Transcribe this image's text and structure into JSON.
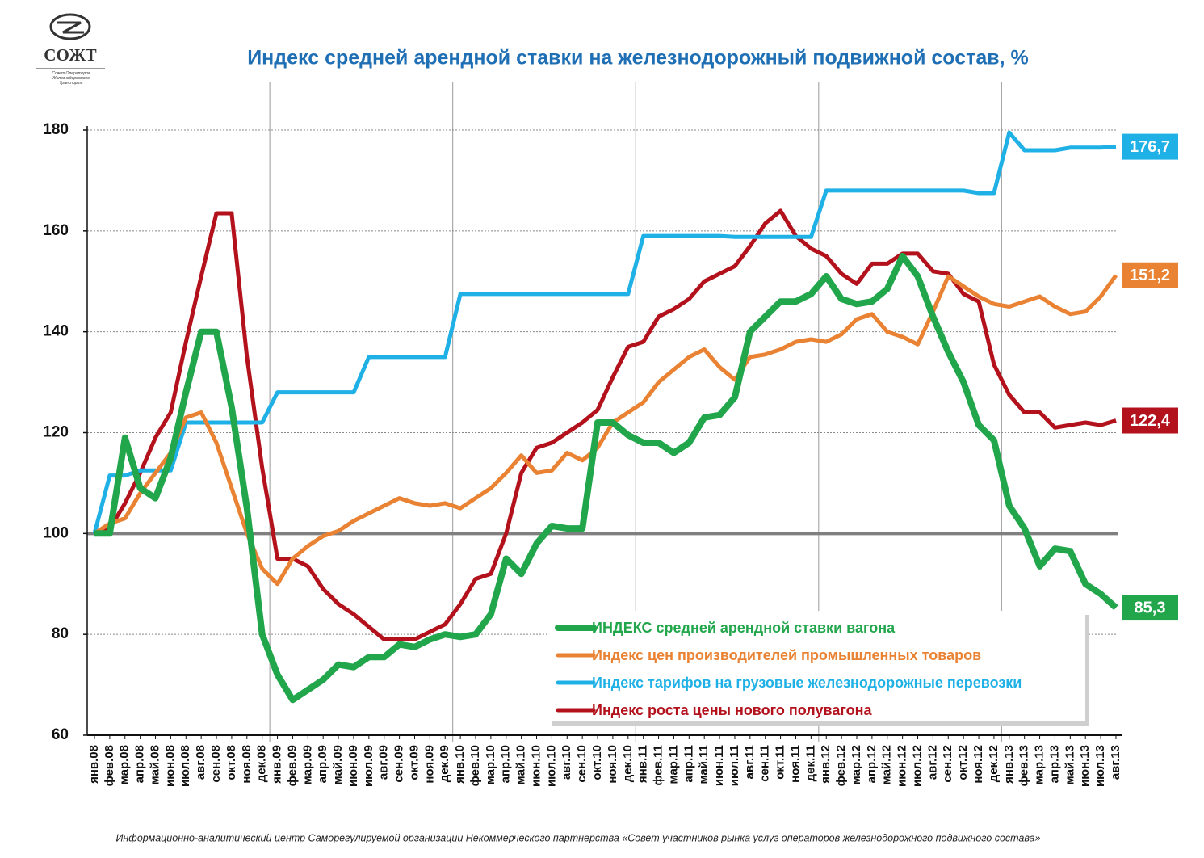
{
  "logo": {
    "name": "СОЖТ",
    "subtitle": "Совет Операторов Железнодорожного Транспорта"
  },
  "footer": "Информационно-аналитический центр Саморегулируемой организации Некоммерческого партнерства «Совет участников рынка услуг операторов железнодорожного подвижного состава»",
  "chart_data": {
    "type": "line",
    "title": "Индекс средней арендной ставки на железнодорожный подвижной состав, %",
    "categories": [
      "янв.08",
      "фев.08",
      "мар.08",
      "апр.08",
      "май.08",
      "июн.08",
      "июл.08",
      "авг.08",
      "сен.08",
      "окт.08",
      "ноя.08",
      "дек.08",
      "янв.09",
      "фев.09",
      "мар.09",
      "апр.09",
      "май.09",
      "июн.09",
      "июл.09",
      "авг.09",
      "сен.09",
      "окт.09",
      "ноя.09",
      "дек.09",
      "янв.10",
      "фев.10",
      "мар.10",
      "апр.10",
      "май.10",
      "июн.10",
      "июл.10",
      "авг.10",
      "сен.10",
      "окт.10",
      "ноя.10",
      "дек.10",
      "янв.11",
      "фев.11",
      "мар.11",
      "апр.11",
      "май.11",
      "июн.11",
      "июл.11",
      "авг.11",
      "сен.11",
      "окт.11",
      "ноя.11",
      "дек.11",
      "янв.12",
      "фев.12",
      "мар.12",
      "апр.12",
      "май.12",
      "июн.12",
      "июл.12",
      "авг.12",
      "сен.12",
      "окт.12",
      "ноя.12",
      "дек.12",
      "янв.13",
      "фев.13",
      "мар.13",
      "апр.13",
      "май.13",
      "июн.13",
      "июл.13",
      "авг.13"
    ],
    "series": [
      {
        "name": "ИНДЕКС средней арендной ставки вагона",
        "color": "#21a64b",
        "values": [
          100,
          100,
          119,
          109,
          107,
          115,
          128,
          140,
          140,
          125,
          105,
          80,
          72,
          67,
          69,
          71,
          74,
          73.5,
          75.5,
          75.5,
          78,
          77.5,
          79,
          80,
          79.5,
          80,
          84,
          95,
          92,
          98,
          101.5,
          101,
          101,
          122,
          122,
          119.5,
          118,
          118,
          116,
          118,
          123,
          123.5,
          127,
          140,
          143,
          146,
          146,
          147.5,
          151,
          146.5,
          145.5,
          146,
          148.5,
          155,
          151,
          143,
          136,
          130,
          121.5,
          118.5,
          105.5,
          101,
          93.5,
          97,
          96.5,
          90,
          88,
          85.3
        ],
        "value_labels": [
          null,
          null,
          null,
          null,
          null,
          null,
          null,
          null,
          null,
          null,
          null,
          null,
          null,
          null,
          null,
          null,
          null,
          null,
          null,
          null,
          null,
          null,
          null,
          null,
          null,
          null,
          null,
          null,
          null,
          null,
          null,
          null,
          null,
          null,
          null,
          null,
          null,
          null,
          null,
          null,
          null,
          null,
          null,
          null,
          null,
          null,
          null,
          null,
          null,
          null,
          null,
          null,
          null,
          null,
          null,
          null,
          null,
          null,
          null,
          null,
          null,
          null,
          null,
          null,
          null,
          null,
          null,
          "85,3"
        ]
      },
      {
        "name": "Индекс цен производителей промышленных товаров",
        "color": "#e98232",
        "values": [
          100,
          102,
          103,
          108,
          112,
          116,
          123,
          124,
          118,
          109,
          100,
          93,
          90,
          95,
          97.5,
          99.5,
          100.5,
          102.5,
          104,
          105.5,
          107,
          106,
          105.5,
          106,
          105,
          107,
          109,
          112,
          115.5,
          112,
          112.5,
          116,
          114.5,
          117,
          122,
          124,
          126,
          130,
          132.5,
          135,
          136.5,
          133,
          130.5,
          135,
          135.5,
          136.5,
          138,
          138.5,
          138,
          139.5,
          142.5,
          143.5,
          140,
          139,
          137.5,
          144,
          151,
          149,
          147,
          145.5,
          145,
          146,
          147,
          145,
          143.5,
          144,
          147,
          151.2
        ],
        "value_labels": [
          null,
          null,
          null,
          null,
          null,
          null,
          null,
          null,
          null,
          null,
          null,
          null,
          null,
          null,
          null,
          null,
          null,
          null,
          null,
          null,
          null,
          null,
          null,
          null,
          null,
          null,
          null,
          null,
          null,
          null,
          null,
          null,
          null,
          null,
          null,
          null,
          null,
          null,
          null,
          null,
          null,
          null,
          null,
          null,
          null,
          null,
          null,
          null,
          null,
          null,
          null,
          null,
          null,
          null,
          null,
          null,
          null,
          null,
          null,
          null,
          null,
          null,
          null,
          null,
          null,
          null,
          null,
          "151,2"
        ]
      },
      {
        "name": "Индекс тарифов на грузовые железнодорожные перевозки",
        "color": "#1fb1e6",
        "values": [
          100,
          111.5,
          111.5,
          112.5,
          112.5,
          112.5,
          122,
          122,
          122,
          122,
          122,
          122,
          128,
          128,
          128,
          128,
          128,
          128,
          135,
          135,
          135,
          135,
          135,
          135,
          147.5,
          147.5,
          147.5,
          147.5,
          147.5,
          147.5,
          147.5,
          147.5,
          147.5,
          147.5,
          147.5,
          147.5,
          159,
          159,
          159,
          159,
          159,
          159,
          158.8,
          158.8,
          158.8,
          158.8,
          158.8,
          158.8,
          168,
          168,
          168,
          168,
          168,
          168,
          168,
          168,
          168,
          168,
          167.5,
          167.5,
          179.5,
          176,
          176,
          176,
          176.5,
          176.5,
          176.5,
          176.7
        ],
        "value_labels": [
          null,
          null,
          null,
          null,
          null,
          null,
          null,
          null,
          null,
          null,
          null,
          null,
          null,
          null,
          null,
          null,
          null,
          null,
          null,
          null,
          null,
          null,
          null,
          null,
          null,
          null,
          null,
          null,
          null,
          null,
          null,
          null,
          null,
          null,
          null,
          null,
          null,
          null,
          null,
          null,
          null,
          null,
          null,
          null,
          null,
          null,
          null,
          null,
          null,
          null,
          null,
          null,
          null,
          null,
          null,
          null,
          null,
          null,
          null,
          null,
          null,
          null,
          null,
          null,
          null,
          null,
          null,
          "176,7"
        ]
      },
      {
        "name": "Индекс роста цены нового полувагона",
        "color": "#b3121c",
        "values": [
          100,
          101,
          106,
          112,
          119,
          124,
          138,
          151,
          163.5,
          163.5,
          135,
          113,
          95,
          95,
          93.5,
          89,
          86,
          84,
          81.5,
          79,
          79,
          79,
          80.5,
          82,
          86,
          91,
          92,
          100,
          112,
          117,
          118,
          120,
          122,
          124.5,
          131,
          137,
          138,
          143,
          144.5,
          146.5,
          150,
          151.5,
          153,
          157,
          161.5,
          164,
          159,
          156.5,
          155,
          151.5,
          149.5,
          153.5,
          153.5,
          155.5,
          155.5,
          152,
          151.5,
          147.5,
          146,
          133.5,
          127.5,
          124,
          124,
          121,
          121.5,
          122,
          121.5,
          122.4
        ],
        "value_labels": [
          null,
          null,
          null,
          null,
          null,
          null,
          null,
          null,
          null,
          null,
          null,
          null,
          null,
          null,
          null,
          null,
          null,
          null,
          null,
          null,
          null,
          null,
          null,
          null,
          null,
          null,
          null,
          null,
          null,
          null,
          null,
          null,
          null,
          null,
          null,
          null,
          null,
          null,
          null,
          null,
          null,
          null,
          null,
          null,
          null,
          null,
          null,
          null,
          null,
          null,
          null,
          null,
          null,
          null,
          null,
          null,
          null,
          null,
          null,
          null,
          null,
          null,
          null,
          null,
          null,
          null,
          null,
          "122,4"
        ]
      }
    ],
    "ylim": [
      60,
      180
    ],
    "yticks": [
      60,
      80,
      100,
      120,
      140,
      160,
      180
    ],
    "grid": true,
    "reference_line": 100,
    "legend": "lower right"
  }
}
